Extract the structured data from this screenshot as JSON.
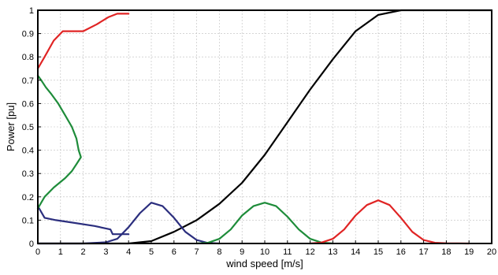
{
  "chart_data": {
    "type": "line",
    "title": "",
    "xlabel": "wind speed [m/s]",
    "ylabel": "Power [pu]",
    "xlim": [
      0,
      20
    ],
    "ylim": [
      0,
      1
    ],
    "x_ticks": [
      0,
      1,
      2,
      3,
      4,
      5,
      6,
      7,
      8,
      9,
      10,
      11,
      12,
      13,
      14,
      15,
      16,
      17,
      18,
      19,
      20
    ],
    "y_ticks": [
      0,
      0.1,
      0.2,
      0.3,
      0.4,
      0.5,
      0.6,
      0.7,
      0.8,
      0.9,
      1
    ],
    "x_tick_labels": [
      "0",
      "1",
      "2",
      "3",
      "4",
      "5",
      "6",
      "7",
      "8",
      "9",
      "10",
      "11",
      "12",
      "13",
      "14",
      "15",
      "16",
      "17",
      "18",
      "19",
      "20"
    ],
    "y_tick_labels": [
      "0",
      "0.1",
      "0.2",
      "0.3",
      "0.4",
      "0.5",
      "0.6",
      "0.7",
      "0.8",
      "0.9",
      "1"
    ],
    "grid": true,
    "series": [
      {
        "role": "power curve",
        "color": "#000000",
        "points": [
          [
            0,
            0
          ],
          [
            4,
            0
          ],
          [
            5,
            0.01
          ],
          [
            6,
            0.05
          ],
          [
            7,
            0.1
          ],
          [
            8,
            0.17
          ],
          [
            9,
            0.26
          ],
          [
            10,
            0.38
          ],
          [
            11,
            0.52
          ],
          [
            12,
            0.66
          ],
          [
            13,
            0.79
          ],
          [
            14,
            0.91
          ],
          [
            15,
            0.98
          ],
          [
            16,
            1.0
          ],
          [
            20,
            1.0
          ]
        ]
      },
      {
        "role": "wind pdf, mean 5 m/s",
        "color": "#2b2e7e",
        "points": [
          [
            0,
            0
          ],
          [
            2,
            0
          ],
          [
            3,
            0.005
          ],
          [
            3.5,
            0.02
          ],
          [
            4,
            0.07
          ],
          [
            4.5,
            0.13
          ],
          [
            5,
            0.175
          ],
          [
            5.5,
            0.16
          ],
          [
            6,
            0.11
          ],
          [
            6.5,
            0.05
          ],
          [
            7,
            0.015
          ],
          [
            7.5,
            0.002
          ],
          [
            8,
            0
          ]
        ]
      },
      {
        "role": "wind pdf, mean 10 m/s",
        "color": "#1e8c3a",
        "points": [
          [
            7,
            0
          ],
          [
            7.5,
            0.003
          ],
          [
            8,
            0.02
          ],
          [
            8.5,
            0.06
          ],
          [
            9,
            0.12
          ],
          [
            9.5,
            0.16
          ],
          [
            10,
            0.175
          ],
          [
            10.5,
            0.16
          ],
          [
            11,
            0.115
          ],
          [
            11.5,
            0.06
          ],
          [
            12,
            0.02
          ],
          [
            12.5,
            0.004
          ],
          [
            13,
            0
          ]
        ]
      },
      {
        "role": "wind pdf, mean 15 m/s",
        "color": "#e02424",
        "points": [
          [
            12,
            0
          ],
          [
            12.5,
            0.004
          ],
          [
            13,
            0.02
          ],
          [
            13.5,
            0.06
          ],
          [
            14,
            0.12
          ],
          [
            14.5,
            0.165
          ],
          [
            15,
            0.185
          ],
          [
            15.5,
            0.165
          ],
          [
            16,
            0.11
          ],
          [
            16.5,
            0.05
          ],
          [
            17,
            0.015
          ],
          [
            17.5,
            0.003
          ],
          [
            18,
            0.001
          ],
          [
            19,
            0
          ]
        ]
      },
      {
        "role": "power pdf, blue",
        "color": "#2b2e7e",
        "points": [
          [
            0,
            0.16
          ],
          [
            0.3,
            0.11
          ],
          [
            0.8,
            0.1
          ],
          [
            1.5,
            0.09
          ],
          [
            2.5,
            0.075
          ],
          [
            3.2,
            0.06
          ],
          [
            3.3,
            0.04
          ],
          [
            4,
            0.04
          ]
        ]
      },
      {
        "role": "power pdf, green",
        "color": "#1e8c3a",
        "points": [
          [
            0,
            0.15
          ],
          [
            0.3,
            0.2
          ],
          [
            0.7,
            0.24
          ],
          [
            1.2,
            0.28
          ],
          [
            1.5,
            0.31
          ],
          [
            1.7,
            0.34
          ],
          [
            1.9,
            0.37
          ],
          [
            1.8,
            0.4
          ],
          [
            1.7,
            0.45
          ],
          [
            1.5,
            0.5
          ],
          [
            1.2,
            0.55
          ],
          [
            0.9,
            0.6
          ],
          [
            0.6,
            0.64
          ],
          [
            0.35,
            0.67
          ],
          [
            0.15,
            0.7
          ],
          [
            0,
            0.72
          ]
        ]
      },
      {
        "role": "power pdf, red",
        "color": "#e02424",
        "points": [
          [
            0,
            0.75
          ],
          [
            0.3,
            0.8
          ],
          [
            0.7,
            0.87
          ],
          [
            1.1,
            0.91
          ],
          [
            2,
            0.91
          ],
          [
            2.6,
            0.94
          ],
          [
            3.1,
            0.97
          ],
          [
            3.5,
            0.985
          ],
          [
            4,
            0.985
          ]
        ]
      }
    ]
  }
}
